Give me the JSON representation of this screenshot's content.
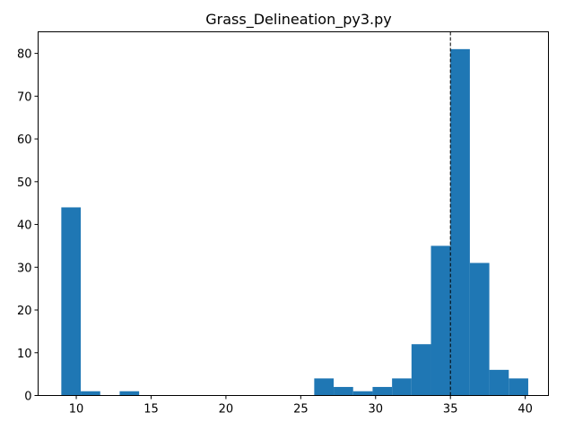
{
  "chart_data": {
    "type": "bar",
    "title": "Grass_Delineation_py3.py",
    "xlabel": "",
    "ylabel": "",
    "xlim": [
      7.45,
      41.55
    ],
    "ylim": [
      0,
      85.05
    ],
    "bin_edges": [
      9.0,
      10.3,
      11.6,
      12.9,
      14.2,
      15.5,
      16.8,
      18.1,
      19.4,
      20.7,
      22.0,
      23.3,
      24.6,
      25.9,
      27.2,
      28.5,
      29.8,
      31.1,
      32.4,
      33.7,
      35.0,
      36.3,
      37.6,
      38.9,
      40.2
    ],
    "values": [
      44,
      1,
      0,
      1,
      0,
      0,
      0,
      0,
      0,
      0,
      0,
      0,
      0,
      4,
      2,
      1,
      2,
      4,
      12,
      35,
      81,
      31,
      6,
      4
    ],
    "x_ticks": [
      10,
      15,
      20,
      25,
      30,
      35,
      40
    ],
    "y_ticks": [
      0,
      10,
      20,
      30,
      40,
      50,
      60,
      70,
      80
    ],
    "vline": {
      "x": 35.0,
      "style": "dashed",
      "color": "#000000"
    },
    "bar_color": "#1f77b4",
    "grid": false,
    "legend": "none"
  }
}
